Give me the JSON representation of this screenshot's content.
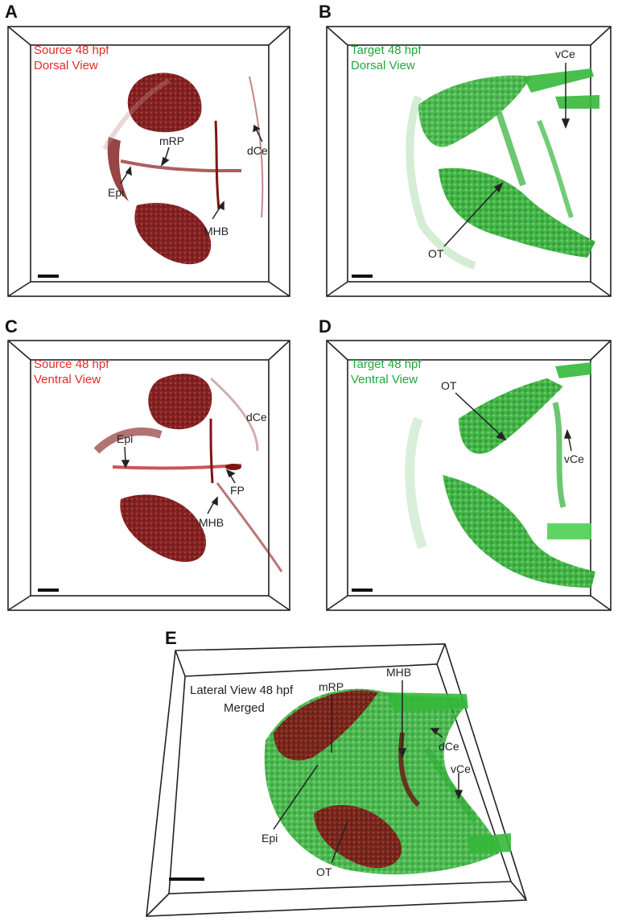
{
  "panels": {
    "A": {
      "letter": "A",
      "line1": "Source 48 hpf",
      "line2": "Dorsal View",
      "annotations": {
        "mRP": "mRP",
        "dCe": "dCe",
        "Epi": "Epi",
        "MHB": "MHB"
      }
    },
    "B": {
      "letter": "B",
      "line1": "Target 48 hpf",
      "line2": "Dorsal View",
      "annotations": {
        "vCe": "vCe",
        "OT": "OT"
      }
    },
    "C": {
      "letter": "C",
      "line1": "Source 48 hpf",
      "line2": "Ventral View",
      "annotations": {
        "dCe": "dCe",
        "Epi": "Epi",
        "FP": "FP",
        "MHB": "MHB"
      }
    },
    "D": {
      "letter": "D",
      "line1": "Target 48 hpf",
      "line2": "Ventral View",
      "annotations": {
        "OT": "OT",
        "vCe": "vCe"
      }
    },
    "E": {
      "letter": "E",
      "line1": "Lateral View 48 hpf",
      "line2": "Merged",
      "annotations": {
        "mRP": "mRP",
        "MHB": "MHB",
        "dCe": "dCe",
        "vCe": "vCe",
        "Epi": "Epi",
        "OT": "OT"
      }
    }
  },
  "colors": {
    "source": "#8b1a1a",
    "target": "#2fb236",
    "source_text": "#e52a2a",
    "target_text": "#1fa83c"
  }
}
